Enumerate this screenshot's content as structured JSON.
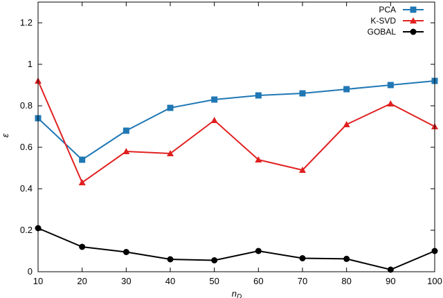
{
  "chart_data": {
    "type": "line",
    "xlabel": "n_D",
    "xlabel_main": "n",
    "xlabel_sub": "D",
    "ylabel": "ε",
    "xlim": [
      10,
      100
    ],
    "ylim": [
      0,
      1.3
    ],
    "grid": false,
    "legend_position": "top-right",
    "x_ticks": [
      10,
      20,
      30,
      40,
      50,
      60,
      70,
      80,
      90,
      100
    ],
    "y_ticks": [
      0,
      0.2,
      0.4,
      0.6,
      0.8,
      1,
      1.2
    ],
    "x": [
      10,
      20,
      30,
      40,
      50,
      60,
      70,
      80,
      90,
      100
    ],
    "series": [
      {
        "name": "PCA",
        "color": "#1f77b4",
        "marker": "square",
        "values": [
          0.74,
          0.54,
          0.68,
          0.79,
          0.83,
          0.85,
          0.86,
          0.88,
          0.9,
          0.92
        ]
      },
      {
        "name": "K-SVD",
        "color": "#e02020",
        "marker": "triangle",
        "values": [
          0.92,
          0.43,
          0.58,
          0.57,
          0.73,
          0.54,
          0.49,
          0.71,
          0.81,
          0.7
        ]
      },
      {
        "name": "GOBAL",
        "color": "#000000",
        "marker": "circle",
        "values": [
          0.21,
          0.12,
          0.095,
          0.06,
          0.055,
          0.1,
          0.065,
          0.062,
          0.01,
          0.1
        ]
      }
    ]
  }
}
